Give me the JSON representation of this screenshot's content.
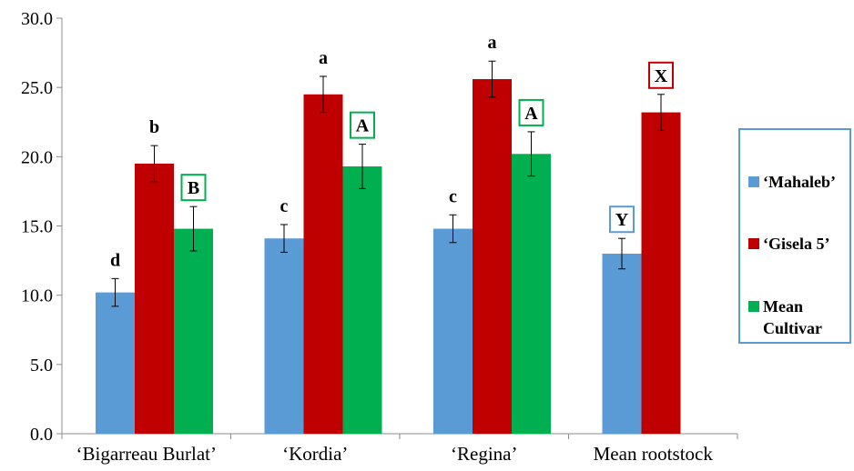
{
  "chart_data": {
    "type": "bar",
    "categories": [
      "‘Bigarreau Burlat’",
      "‘Kordia’",
      "‘Regina’",
      "Mean rootstock"
    ],
    "series": [
      {
        "name": "‘Mahaleb’",
        "color": "#5B9BD5",
        "values": [
          10.2,
          14.1,
          14.8,
          13.0
        ],
        "errors": [
          1.0,
          1.0,
          1.0,
          1.1
        ],
        "labels": [
          "d",
          "c",
          "c",
          "Y"
        ],
        "boxed": [
          false,
          false,
          false,
          true
        ]
      },
      {
        "name": "‘Gisela 5’",
        "color": "#C00000",
        "values": [
          19.5,
          24.5,
          25.6,
          23.2
        ],
        "errors": [
          1.3,
          1.3,
          1.3,
          1.3
        ],
        "labels": [
          "b",
          "a",
          "a",
          "X"
        ],
        "boxed": [
          false,
          false,
          false,
          true
        ]
      },
      {
        "name": "Mean Cultivar",
        "legend_lines": [
          "Mean",
          "Cultivar"
        ],
        "color": "#00B050",
        "values": [
          14.8,
          19.3,
          20.2,
          null
        ],
        "errors": [
          1.6,
          1.6,
          1.6,
          null
        ],
        "labels": [
          "B",
          "A",
          "A",
          null
        ],
        "boxed": [
          true,
          true,
          true,
          false
        ]
      }
    ],
    "ylim": [
      0,
      30
    ],
    "yticks": [
      "0.0",
      "5.0",
      "10.0",
      "15.0",
      "20.0",
      "25.0",
      "30.0"
    ],
    "title": "",
    "xlabel": "",
    "ylabel": "",
    "grid": false,
    "legend_position": "right"
  }
}
